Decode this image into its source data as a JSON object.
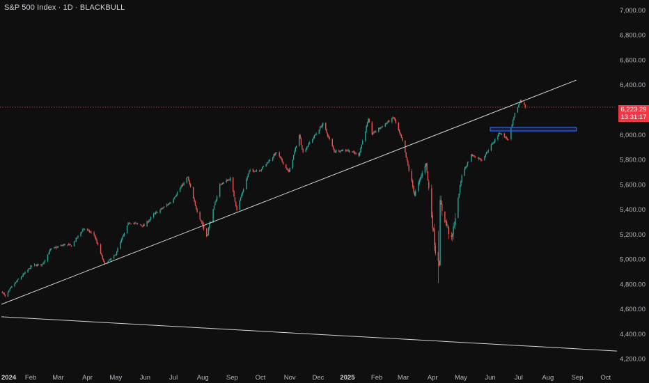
{
  "header": {
    "title": "S&P 500 Index · 1D · BLACKBULL"
  },
  "price_label": {
    "price": "6,223.29",
    "countdown": "13:31:17",
    "color": "#f23645"
  },
  "colors": {
    "up": "#26a69a",
    "down": "#ef5350",
    "background": "#0f0f0f",
    "zone": "#2962ff",
    "lines": "#d1d4dc"
  },
  "chart_data": {
    "type": "candlestick",
    "title": "S&P 500 Index · 1D · BLACKBULL",
    "y_axis": {
      "position": "right",
      "range": [
        4120,
        7050
      ],
      "ticks": [
        7000,
        6800,
        6600,
        6400,
        6200,
        6000,
        5800,
        5600,
        5400,
        5200,
        5000,
        4800,
        4600,
        4400,
        4200
      ],
      "tick_labels": [
        "7,000.00",
        "6,800.00",
        "6,600.00",
        "6,400.00",
        "6,200.00",
        "6,000.00",
        "5,800.00",
        "5,600.00",
        "5,400.00",
        "5,200.00",
        "5,000.00",
        "4,800.00",
        "4,600.00",
        "4,400.00",
        "4,200.00"
      ]
    },
    "x_axis": {
      "range": [
        "2024-01-01",
        "2025-10-13"
      ],
      "ticks": [
        {
          "date": "2024-01-01",
          "label": "2024",
          "bold": true
        },
        {
          "date": "2024-02-01",
          "label": "Feb"
        },
        {
          "date": "2024-03-01",
          "label": "Mar"
        },
        {
          "date": "2024-04-01",
          "label": "Apr"
        },
        {
          "date": "2024-05-01",
          "label": "May"
        },
        {
          "date": "2024-06-01",
          "label": "Jun"
        },
        {
          "date": "2024-07-01",
          "label": "Jul"
        },
        {
          "date": "2024-08-01",
          "label": "Aug"
        },
        {
          "date": "2024-09-01",
          "label": "Sep"
        },
        {
          "date": "2024-10-01",
          "label": "Oct"
        },
        {
          "date": "2024-11-01",
          "label": "Nov"
        },
        {
          "date": "2024-12-01",
          "label": "Dec"
        },
        {
          "date": "2025-01-01",
          "label": "2025",
          "bold": true
        },
        {
          "date": "2025-02-01",
          "label": "Feb"
        },
        {
          "date": "2025-03-01",
          "label": "Mar"
        },
        {
          "date": "2025-04-01",
          "label": "Apr"
        },
        {
          "date": "2025-05-01",
          "label": "May"
        },
        {
          "date": "2025-06-01",
          "label": "Jun"
        },
        {
          "date": "2025-07-01",
          "label": "Jul"
        },
        {
          "date": "2025-08-01",
          "label": "Aug"
        },
        {
          "date": "2025-09-01",
          "label": "Sep"
        },
        {
          "date": "2025-10-01",
          "label": "Oct"
        }
      ]
    },
    "close_path": [
      [
        "2024-01-02",
        4740
      ],
      [
        "2024-01-05",
        4700
      ],
      [
        "2024-01-12",
        4780
      ],
      [
        "2024-01-19",
        4840
      ],
      [
        "2024-01-26",
        4890
      ],
      [
        "2024-02-02",
        4950
      ],
      [
        "2024-02-13",
        4960
      ],
      [
        "2024-02-22",
        5080
      ],
      [
        "2024-03-08",
        5120
      ],
      [
        "2024-03-15",
        5110
      ],
      [
        "2024-03-28",
        5250
      ],
      [
        "2024-04-08",
        5200
      ],
      [
        "2024-04-19",
        4960
      ],
      [
        "2024-04-30",
        5030
      ],
      [
        "2024-05-15",
        5300
      ],
      [
        "2024-05-31",
        5270
      ],
      [
        "2024-06-10",
        5360
      ],
      [
        "2024-06-28",
        5460
      ],
      [
        "2024-07-16",
        5660
      ],
      [
        "2024-07-24",
        5430
      ],
      [
        "2024-08-05",
        5190
      ],
      [
        "2024-08-19",
        5600
      ],
      [
        "2024-08-30",
        5650
      ],
      [
        "2024-09-06",
        5400
      ],
      [
        "2024-09-19",
        5710
      ],
      [
        "2024-10-01",
        5720
      ],
      [
        "2024-10-18",
        5860
      ],
      [
        "2024-10-31",
        5700
      ],
      [
        "2024-11-11",
        6000
      ],
      [
        "2024-11-15",
        5860
      ],
      [
        "2024-12-06",
        6090
      ],
      [
        "2024-12-18",
        5870
      ],
      [
        "2024-12-31",
        5880
      ],
      [
        "2025-01-13",
        5840
      ],
      [
        "2025-01-23",
        6120
      ],
      [
        "2025-01-27",
        6010
      ],
      [
        "2025-02-19",
        6140
      ],
      [
        "2025-02-28",
        5950
      ],
      [
        "2025-03-13",
        5520
      ],
      [
        "2025-03-25",
        5780
      ],
      [
        "2025-04-04",
        5070
      ],
      [
        "2025-04-08",
        4980
      ],
      [
        "2025-04-09",
        5450
      ],
      [
        "2025-04-21",
        5150
      ],
      [
        "2025-05-02",
        5680
      ],
      [
        "2025-05-12",
        5840
      ],
      [
        "2025-05-23",
        5800
      ],
      [
        "2025-06-11",
        6020
      ],
      [
        "2025-06-20",
        5960
      ],
      [
        "2025-06-27",
        6170
      ],
      [
        "2025-07-03",
        6280
      ],
      [
        "2025-07-08",
        6225
      ]
    ],
    "extremes": {
      "high": {
        "date": "2025-07-03",
        "value": 6285
      },
      "low": {
        "date": "2025-04-07",
        "value": 4810
      }
    },
    "last_close": 6223.29,
    "annotations": {
      "upper_trendline": {
        "from": [
          "2024-01-01",
          4640
        ],
        "to": [
          "2025-08-31",
          6440
        ]
      },
      "lower_trendline": {
        "from": [
          "2024-01-01",
          4540
        ],
        "to": [
          "2025-10-13",
          4265
        ]
      },
      "resistance_zone": {
        "from": "2025-06-01",
        "to": "2025-08-31",
        "y_range": [
          6032,
          6060
        ]
      },
      "price_line": 6223.29
    }
  }
}
